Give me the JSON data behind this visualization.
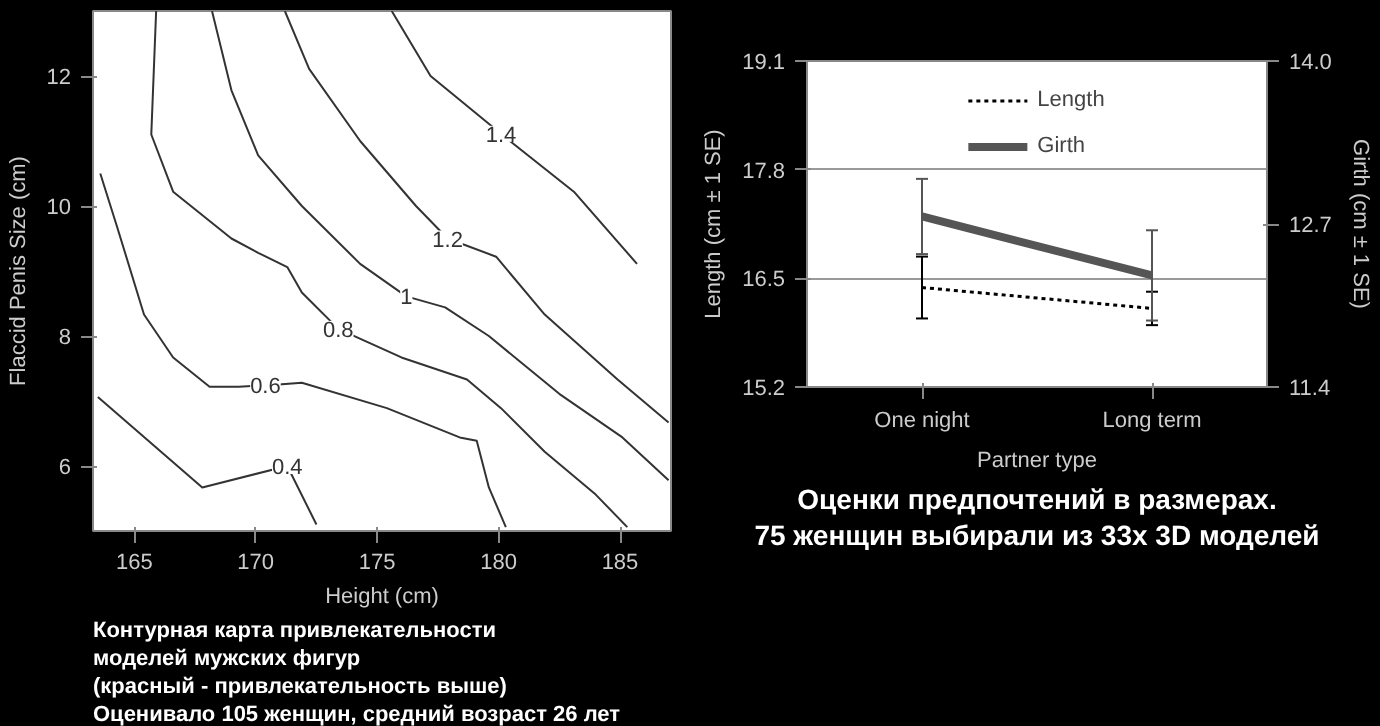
{
  "chart_data": [
    {
      "type": "line",
      "xlabel": "Height (cm)",
      "ylabel": "Flaccid Penis Size (cm)",
      "xlim": [
        163.3,
        187.1
      ],
      "ylim": [
        5,
        13
      ],
      "xticks": [
        165,
        170,
        175,
        180,
        185
      ],
      "yticks": [
        6,
        8,
        10,
        12
      ],
      "grid": false,
      "line_style": "solid",
      "series": [
        {
          "name": "0.4",
          "color": "#333333",
          "x": [
            163.5,
            167.8,
            171.3,
            172.5
          ],
          "values": [
            7.06,
            5.67,
            6.0,
            5.1
          ]
        },
        {
          "name": "0.6",
          "color": "#333333",
          "x": [
            163.6,
            164.3,
            165.4,
            166.6,
            168.1,
            169.3,
            170.4,
            171.9,
            175.4,
            178.4,
            179.1,
            179.6,
            180.3
          ],
          "values": [
            10.5,
            9.67,
            8.33,
            7.67,
            7.22,
            7.22,
            7.24,
            7.28,
            6.89,
            6.44,
            6.39,
            5.67,
            5.06
          ]
        },
        {
          "name": "0.8",
          "color": "#333333",
          "x": [
            165.9,
            165.7,
            166.6,
            169.0,
            170.1,
            171.3,
            171.9,
            173.4,
            176.0,
            178.7,
            180.1,
            181.9,
            184.0,
            185.3
          ],
          "values": [
            13.0,
            11.1,
            10.22,
            9.5,
            9.28,
            9.06,
            8.67,
            8.11,
            7.67,
            7.33,
            6.89,
            6.22,
            5.56,
            5.06
          ]
        },
        {
          "name": "1",
          "color": "#333333",
          "x": [
            168.2,
            169.0,
            170.1,
            171.9,
            174.3,
            176.2,
            177.8,
            179.6,
            182.5,
            185.1,
            187.0
          ],
          "values": [
            13.0,
            11.78,
            10.78,
            10.0,
            9.11,
            8.61,
            8.44,
            8.0,
            7.11,
            6.44,
            5.78
          ]
        },
        {
          "name": "1.2",
          "color": "#333333",
          "x": [
            171.2,
            172.2,
            174.3,
            176.6,
            177.9,
            179.9,
            181.9,
            184.9,
            187.0
          ],
          "values": [
            13.0,
            12.11,
            11.0,
            10.0,
            9.5,
            9.22,
            8.33,
            7.33,
            6.67
          ]
        },
        {
          "name": "1.4",
          "color": "#333333",
          "x": [
            175.6,
            177.2,
            180.1,
            183.1,
            185.7
          ],
          "values": [
            13.0,
            12.0,
            11.11,
            10.22,
            9.11
          ]
        }
      ],
      "annotations": [
        "Контурная карта привлекательности",
        "моделей мужских фигур",
        "(красный - привлекательность выше)",
        "Оценивало 105 женщин, средний возраст 26 лет"
      ]
    },
    {
      "type": "line",
      "xlabel": "Partner type",
      "ylabel": "Length (cm ± 1 SE)",
      "y2label": "Girth (cm ± 1 SE)",
      "categories": [
        "One night",
        "Long term"
      ],
      "ylim": [
        15.2,
        19.1
      ],
      "yticks": [
        15.2,
        16.5,
        17.8,
        19.1
      ],
      "y2lim": [
        11.4,
        14.0
      ],
      "y2ticks": [
        11.4,
        12.7,
        {
          "value": 14.0,
          "label": "14.0"
        }
      ],
      "grid": "y",
      "legend": "top",
      "series": [
        {
          "name": "Length",
          "color": "#000000",
          "line_style": "dotted",
          "values": [
            16.39,
            16.14
          ],
          "errors": [
            0.37,
            0.2
          ]
        },
        {
          "name": "Girth",
          "color": "#555555",
          "line_style": "solid",
          "axis": "y2",
          "values": [
            12.76,
            12.29
          ],
          "errors": [
            0.3,
            0.36
          ]
        }
      ],
      "annotations": [
        "Оценки предпочтений в размерах.",
        "75 женщин выбирали из 33x 3D моделей"
      ]
    }
  ]
}
